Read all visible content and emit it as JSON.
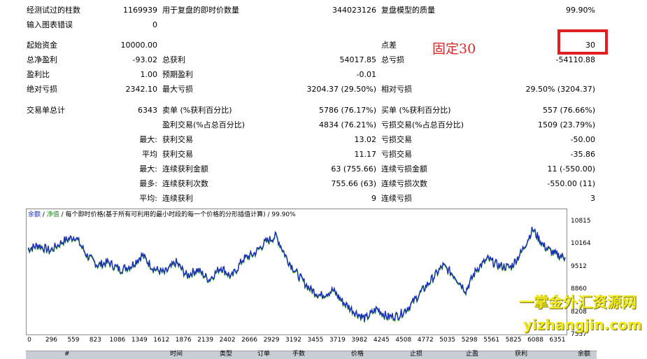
{
  "report": {
    "bars_tested_label": "经测试过的柱数",
    "bars_tested": "1169939",
    "ticks_label": "用于复盘的即时价数量",
    "ticks": "344023126",
    "quality_label": "复盘模型的质量",
    "quality": "99.90%",
    "errors_label": "输入图表错误",
    "errors": "0",
    "deposit_label": "起始资金",
    "deposit": "10000.00",
    "spread_label": "点差",
    "spread": "30",
    "net_profit_label": "总净盈利",
    "net_profit": "-93.02",
    "gross_profit_label": "总获利",
    "gross_profit": "54017.85",
    "gross_loss_label": "总亏损",
    "gross_loss": "-54110.88",
    "profit_factor_label": "盈利比",
    "profit_factor": "1.00",
    "expected_payoff_label": "预期盈利",
    "expected_payoff": "-0.01",
    "abs_drawdown_label": "绝对亏损",
    "abs_drawdown": "2342.10",
    "max_drawdown_label": "最大亏损",
    "max_drawdown": "3204.37 (29.50%)",
    "rel_drawdown_label": "相对亏损",
    "rel_drawdown": "29.50% (3204.37)",
    "total_trades_label": "交易单总计",
    "total_trades": "6343",
    "short_label": "卖单 (%获利百分比)",
    "short": "5786 (76.17%)",
    "long_label": "买单 (%获利百分比)",
    "long": "557 (76.66%)",
    "profit_trades_label": "盈利交易(%占总百分比)",
    "profit_trades": "4834 (76.21%)",
    "loss_trades_label": "亏损交易(%占总百分比)",
    "loss_trades": "1509 (23.79%)",
    "largest_prefix": "最大:",
    "largest_profit_label": "获利交易",
    "largest_profit": "13.02",
    "largest_loss_label": "亏损交易",
    "largest_loss": "-50.00",
    "average_prefix": "平均",
    "average_profit_label": "获利交易",
    "average_profit": "11.17",
    "average_loss_label": "亏损交易",
    "average_loss": "-35.86",
    "max_consec_prefix": "最大:",
    "max_consec_wins_label": "连续获利金额",
    "max_consec_wins": "63 (755.66)",
    "max_consec_losses_label": "连续亏损金额",
    "max_consec_losses": "11 (-550.00)",
    "max_consec_profit_prefix": "最多:",
    "max_consec_profit_label": "连续获利次数",
    "max_consec_profit": "755.66 (63)",
    "max_consec_loss_label": "连续亏损次数",
    "max_consec_loss": "-550.00 (11)",
    "avg_consec_prefix": "平均:",
    "avg_consec_wins_label": "连续获利",
    "avg_consec_wins": "9",
    "avg_consec_losses_label": "连续亏损",
    "avg_consec_losses": "3"
  },
  "annotation": "固定30",
  "watermark": {
    "line1": "一掌金外汇资源网",
    "line2": "yizhangjin.com"
  },
  "chart_data": {
    "type": "line",
    "title": "",
    "legend": {
      "balance": "余额",
      "sep1": " / ",
      "equity": "净值",
      "sep2": " / ",
      "text": "每个即时价格(基于所有可利用的最小时段的每一个价格的分形插值计算)",
      "sep3": " / ",
      "quality": "99.90%"
    },
    "colors": {
      "balance": "#1a2fb8",
      "equity": "#1d8a1d"
    },
    "x_ticks": [
      "0",
      "296",
      "559",
      "823",
      "1086",
      "1349",
      "1612",
      "1876",
      "2139",
      "2402",
      "2666",
      "2929",
      "3192",
      "3455",
      "3719",
      "3982",
      "4245",
      "4508",
      "4772",
      "5035",
      "5298",
      "5561",
      "5825",
      "6088",
      "6351"
    ],
    "y_ticks": [
      "10815",
      "10164",
      "9512",
      "8860",
      "8208",
      "7557"
    ],
    "xlim": [
      0,
      6343
    ],
    "ylim": [
      7557,
      11000
    ],
    "series": [
      {
        "name": "余额",
        "x": [
          0,
          120,
          260,
          420,
          559,
          700,
          823,
          950,
          1086,
          1220,
          1349,
          1480,
          1612,
          1750,
          1876,
          2000,
          2139,
          2280,
          2402,
          2540,
          2666,
          2800,
          2929,
          3060,
          3192,
          3330,
          3455,
          3600,
          3719,
          3860,
          3982,
          4120,
          4245,
          4380,
          4508,
          4640,
          4772,
          4900,
          5035,
          5170,
          5298,
          5430,
          5561,
          5700,
          5825,
          5960,
          6088,
          6220,
          6343
        ],
        "y": [
          10100,
          10220,
          10050,
          10350,
          10480,
          9900,
          9620,
          9700,
          9480,
          9600,
          9920,
          9520,
          9380,
          9700,
          9300,
          9480,
          9180,
          9560,
          9250,
          9800,
          9950,
          10300,
          10500,
          9800,
          9300,
          8900,
          8700,
          8860,
          8500,
          8200,
          8000,
          8300,
          8050,
          8100,
          8380,
          8800,
          9200,
          9600,
          9300,
          8850,
          9500,
          9800,
          9600,
          9550,
          10000,
          10700,
          10200,
          9950,
          9850
        ]
      }
    ]
  },
  "trade_table": {
    "columns": [
      "#",
      "时间",
      "类型",
      "订单",
      "手数",
      "价格",
      "止损",
      "止盈",
      "获利",
      "余额"
    ]
  }
}
